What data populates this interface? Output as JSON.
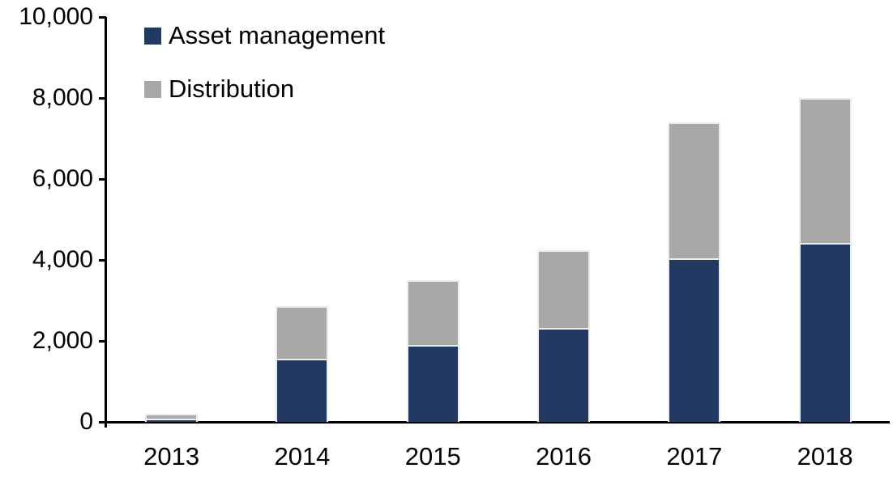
{
  "page": {
    "background": "#ffffff",
    "axis_color": "#000000",
    "text_color": "#000000"
  },
  "chart_data": {
    "type": "bar",
    "stacked": true,
    "title": "",
    "xlabel": "",
    "ylabel": "",
    "grid": false,
    "legend_position": "top-left",
    "categories": [
      "2013",
      "2014",
      "2015",
      "2016",
      "2017",
      "2018"
    ],
    "series": [
      {
        "name": "Asset management",
        "color": "#223A62",
        "values": [
          90,
          1570,
          1910,
          2330,
          4050,
          4430
        ]
      },
      {
        "name": "Distribution",
        "color": "#A8A8A8",
        "values": [
          110,
          1290,
          1590,
          1920,
          3350,
          3570
        ]
      }
    ],
    "totals": [
      200,
      2860,
      3500,
      4250,
      7400,
      8000
    ],
    "ylim": [
      0,
      10000
    ],
    "yticks": [
      0,
      2000,
      4000,
      6000,
      8000,
      10000
    ],
    "ytick_labels": [
      "0",
      "2,000",
      "4,000",
      "6,000",
      "8,000",
      "10,000"
    ]
  }
}
